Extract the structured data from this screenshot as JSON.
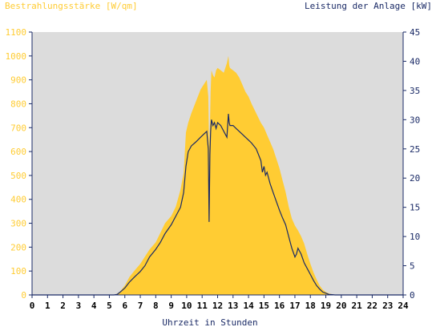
{
  "chart_data": {
    "type": "area",
    "title_left": "Bestrahlungsstärke [W/qm]",
    "title_right": "Leistung der Anlage [kW]",
    "xlabel": "Uhrzeit in Stunden",
    "x_ticks": [
      "0",
      "1",
      "2",
      "3",
      "4",
      "5",
      "6",
      "7",
      "8",
      "9",
      "10",
      "11",
      "12",
      "13",
      "14",
      "15",
      "16",
      "17",
      "18",
      "19",
      "20",
      "21",
      "22",
      "23",
      "24"
    ],
    "y_left_ticks": [
      "0",
      "100",
      "200",
      "300",
      "400",
      "500",
      "600",
      "700",
      "800",
      "900",
      "1000",
      "1100"
    ],
    "y_right_ticks": [
      "0",
      "5",
      "10",
      "15",
      "20",
      "25",
      "30",
      "35",
      "40",
      "45"
    ],
    "ylim_left": [
      0,
      1100
    ],
    "ylim_right": [
      0,
      45
    ],
    "xlim": [
      0,
      24
    ],
    "grid": false,
    "colors": {
      "plot_bg": "#dcdcdc",
      "irradiance": "#ffcc33",
      "power": "#1a2a66",
      "left_axis_text": "#ffcc33",
      "right_axis_text": "#1a2a66",
      "axis": "#1a2a66"
    },
    "series": [
      {
        "name": "Bestrahlungsstärke [W/qm]",
        "axis": "left",
        "render": "area",
        "x": [
          0,
          5.3,
          5.5,
          5.7,
          6,
          6.3,
          6.6,
          7,
          7.3,
          7.6,
          8,
          8.3,
          8.6,
          9,
          9.3,
          9.6,
          9.8,
          9.95,
          10.1,
          10.3,
          10.6,
          10.9,
          11.1,
          11.3,
          11.4,
          11.45,
          11.5,
          11.55,
          11.6,
          11.7,
          11.8,
          11.9,
          12,
          12.2,
          12.4,
          12.6,
          12.7,
          12.75,
          12.8,
          13,
          13.2,
          13.4,
          13.6,
          13.8,
          14,
          14.2,
          14.5,
          14.8,
          15,
          15.2,
          15.4,
          15.6,
          15.8,
          16,
          16.2,
          16.4,
          16.6,
          16.8,
          17,
          17.2,
          17.4,
          17.6,
          17.8,
          18,
          18.2,
          18.4,
          18.6,
          18.8,
          19,
          19.2,
          19.4,
          19.6,
          19.8,
          20,
          24
        ],
        "y": [
          0,
          0,
          5,
          15,
          40,
          75,
          100,
          130,
          160,
          190,
          220,
          260,
          300,
          330,
          370,
          440,
          510,
          680,
          720,
          760,
          810,
          860,
          880,
          900,
          830,
          620,
          700,
          850,
          940,
          920,
          910,
          940,
          950,
          940,
          930,
          970,
          1000,
          960,
          950,
          940,
          930,
          910,
          880,
          850,
          830,
          800,
          760,
          720,
          700,
          670,
          640,
          610,
          570,
          530,
          480,
          430,
          370,
          320,
          290,
          270,
          245,
          215,
          170,
          130,
          95,
          65,
          40,
          22,
          12,
          6,
          3,
          1,
          0,
          0,
          0
        ]
      },
      {
        "name": "Leistung der Anlage [kW]",
        "axis": "right",
        "render": "line",
        "x": [
          0,
          5.3,
          5.5,
          5.7,
          6,
          6.3,
          6.6,
          7,
          7.3,
          7.6,
          8,
          8.3,
          8.6,
          9,
          9.3,
          9.6,
          9.8,
          9.95,
          10.1,
          10.3,
          10.6,
          10.9,
          11.1,
          11.3,
          11.4,
          11.45,
          11.5,
          11.55,
          11.6,
          11.7,
          11.8,
          11.9,
          12,
          12.2,
          12.4,
          12.6,
          12.7,
          12.75,
          12.8,
          13,
          13.2,
          13.4,
          13.6,
          13.8,
          14,
          14.2,
          14.5,
          14.8,
          14.9,
          15,
          15.1,
          15.2,
          15.4,
          15.6,
          15.8,
          16,
          16.2,
          16.4,
          16.6,
          16.8,
          17,
          17.1,
          17.2,
          17.4,
          17.6,
          17.8,
          18,
          18.2,
          18.4,
          18.6,
          18.8,
          19,
          19.2,
          19.4,
          19.6,
          19.8,
          20,
          24
        ],
        "y": [
          0,
          0,
          0.1,
          0.5,
          1.2,
          2.2,
          3,
          4,
          5,
          6.5,
          7.8,
          9,
          10.5,
          12,
          13.5,
          15,
          17.5,
          22,
          24.5,
          25.5,
          26.2,
          27,
          27.5,
          28,
          25,
          12.5,
          24,
          28,
          30,
          29,
          29.5,
          28.5,
          29.5,
          29,
          28,
          27,
          31,
          29.5,
          29,
          29,
          28.5,
          28,
          27.5,
          27,
          26.5,
          26,
          25,
          23,
          21,
          22,
          20.5,
          21,
          19,
          17.5,
          16,
          14.5,
          13.2,
          12,
          10,
          8,
          6.5,
          7,
          8,
          7,
          5.5,
          4.5,
          3.5,
          2.5,
          1.6,
          1,
          0.5,
          0.3,
          0.1,
          0.05,
          0,
          0,
          0,
          0
        ]
      }
    ]
  }
}
